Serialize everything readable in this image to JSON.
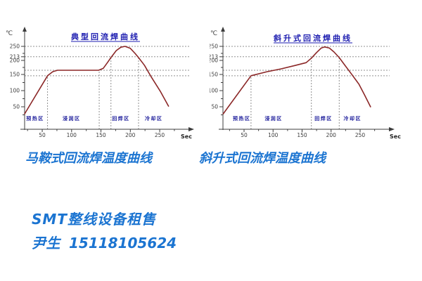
{
  "colors": {
    "curve": "#8b2727",
    "dashed": "#909090",
    "axis": "#3c3c3c",
    "tick_label": "#3c3c3c",
    "title_blue": "#1d1db0",
    "zone_label": "#1f1f9c",
    "caption_blue": "#1b74d1",
    "background": "#ffffff"
  },
  "captions": {
    "left": "马鞍式回流焊温度曲线",
    "right": "斜升式回流焊温度曲线"
  },
  "footer": {
    "line1": "SMT整线设备租售",
    "contact_name": "尹生",
    "contact_phone": "15118105624"
  },
  "chart_data": [
    {
      "type": "line",
      "title": "典型回流焊曲线",
      "xlabel": "Sec",
      "ylabel": "℃",
      "xlim": [
        0,
        290
      ],
      "ylim": [
        0,
        280
      ],
      "grid": "dashed reference lines only",
      "legend_position": "none",
      "x_ticks": [
        50,
        100,
        150,
        200,
        250
      ],
      "x_minor_ticks": [
        25,
        75,
        125,
        175,
        225,
        275
      ],
      "y_ticks": [
        50,
        100,
        150,
        200,
        213,
        250
      ],
      "y_minor_ticks": [
        25,
        75,
        125,
        175,
        225
      ],
      "dashed_h_temps": [
        250,
        213,
        165,
        146
      ],
      "dashed_v": [
        {
          "sec": 59,
          "top_temp": 146
        },
        {
          "sec": 147,
          "top_temp": 165
        },
        {
          "sec": 167,
          "top_temp": 213
        },
        {
          "sec": 214,
          "top_temp": 213
        }
      ],
      "zones": [
        {
          "label": "预热区",
          "center_sec": 38
        },
        {
          "label": "浸润区",
          "center_sec": 100
        },
        {
          "label": "回焊区",
          "center_sec": 184
        },
        {
          "label": "冷却区",
          "center_sec": 240
        }
      ],
      "series": [
        {
          "name": "temperature",
          "points": [
            [
              20,
              28
            ],
            [
              59,
              146
            ],
            [
              68,
              160
            ],
            [
              76,
              165
            ],
            [
              146,
              165
            ],
            [
              154,
              172
            ],
            [
              161,
              192
            ],
            [
              167,
              210
            ],
            [
              176,
              235
            ],
            [
              184,
              247
            ],
            [
              191,
              250
            ],
            [
              200,
              243
            ],
            [
              208,
              225
            ],
            [
              214,
              210
            ],
            [
              224,
              183
            ],
            [
              236,
              141
            ],
            [
              251,
              98
            ],
            [
              265,
              52
            ]
          ]
        }
      ]
    },
    {
      "type": "line",
      "title": "斜升式回流焊曲线",
      "xlabel": "Sec",
      "ylabel": "℃",
      "xlim": [
        0,
        290
      ],
      "ylim": [
        0,
        280
      ],
      "grid": "dashed reference lines only",
      "legend_position": "none",
      "x_ticks": [
        50,
        100,
        150,
        200,
        250
      ],
      "x_minor_ticks": [
        25,
        75,
        125,
        175,
        225,
        275
      ],
      "y_ticks": [
        50,
        100,
        150,
        200,
        213,
        250
      ],
      "y_minor_ticks": [
        25,
        75,
        125,
        175,
        225
      ],
      "dashed_h_temps": [
        250,
        213,
        165,
        146
      ],
      "dashed_v": [
        {
          "sec": 62,
          "top_temp": 146
        },
        {
          "sec": 166,
          "top_temp": 213
        },
        {
          "sec": 214,
          "top_temp": 213
        }
      ],
      "zones": [
        {
          "label": "预热区",
          "center_sec": 46
        },
        {
          "label": "浸润区",
          "center_sec": 101
        },
        {
          "label": "回焊区",
          "center_sec": 187
        },
        {
          "label": "冷却区",
          "center_sec": 237
        }
      ],
      "series": [
        {
          "name": "temperature",
          "points": [
            [
              14,
              28
            ],
            [
              62,
              146
            ],
            [
              90,
              160
            ],
            [
              114,
              170
            ],
            [
              138,
              182
            ],
            [
              157,
              192
            ],
            [
              166,
              208
            ],
            [
              175,
              228
            ],
            [
              183,
              244
            ],
            [
              189,
              248
            ],
            [
              197,
              244
            ],
            [
              205,
              230
            ],
            [
              214,
              210
            ],
            [
              223,
              185
            ],
            [
              235,
              152
            ],
            [
              248,
              120
            ],
            [
              257,
              89
            ],
            [
              268,
              50
            ]
          ]
        }
      ]
    }
  ]
}
